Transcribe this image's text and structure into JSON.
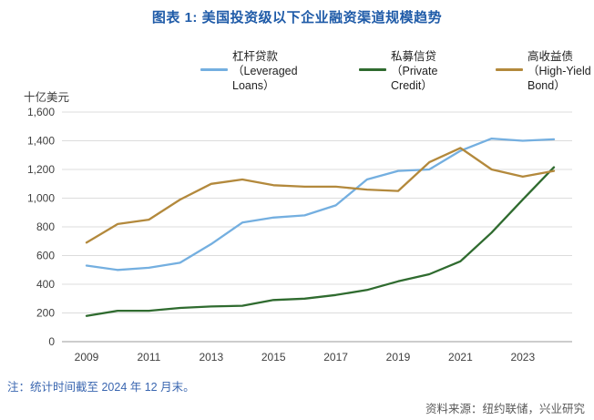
{
  "title": "图表 1: 美国投资级以下企业融资渠道规模趋势",
  "note": "注：统计时间截至 2024 年 12 月末。",
  "source": "资料来源：纽约联储，兴业研究",
  "colors": {
    "title": "#1F5BA8",
    "note": "#3A66B0",
    "source": "#595959",
    "grid": "#dcdcdc",
    "axis": "#9b9b9b",
    "tick_text": "#404040"
  },
  "chart_data": {
    "type": "line",
    "title": "图表 1: 美国投资级以下企业融资渠道规模趋势",
    "ylabel": "十亿美元",
    "xlabel": "",
    "ylim": [
      0,
      1600
    ],
    "ytick_step": 200,
    "grid": true,
    "legend_position": "top",
    "x": [
      2009,
      2010,
      2011,
      2012,
      2013,
      2014,
      2015,
      2016,
      2017,
      2018,
      2019,
      2020,
      2021,
      2022,
      2023,
      2024
    ],
    "xticks": [
      2009,
      2011,
      2013,
      2015,
      2017,
      2019,
      2021,
      2023
    ],
    "series": [
      {
        "name": "杠杆贷款（Leveraged Loans）",
        "legend_lines": [
          "杠杆贷款",
          "（Leveraged",
          "Loans）"
        ],
        "color": "#74AFE0",
        "values": [
          530,
          500,
          515,
          550,
          680,
          830,
          865,
          880,
          950,
          1130,
          1190,
          1200,
          1330,
          1415,
          1400,
          1410
        ]
      },
      {
        "name": "私募信贷（Private Credit）",
        "legend_lines": [
          "私募信贷",
          "（Private",
          "Credit）"
        ],
        "color": "#2F6B2F",
        "values": [
          180,
          215,
          215,
          235,
          245,
          250,
          290,
          300,
          325,
          360,
          420,
          470,
          560,
          760,
          990,
          1215
        ]
      },
      {
        "name": "高收益债（High-Yield Bond）",
        "legend_lines": [
          "高收益债",
          "（High-Yield",
          "Bond）"
        ],
        "color": "#B3893C",
        "values": [
          690,
          820,
          850,
          990,
          1100,
          1130,
          1090,
          1080,
          1080,
          1060,
          1050,
          1250,
          1350,
          1200,
          1150,
          1190
        ]
      }
    ]
  }
}
